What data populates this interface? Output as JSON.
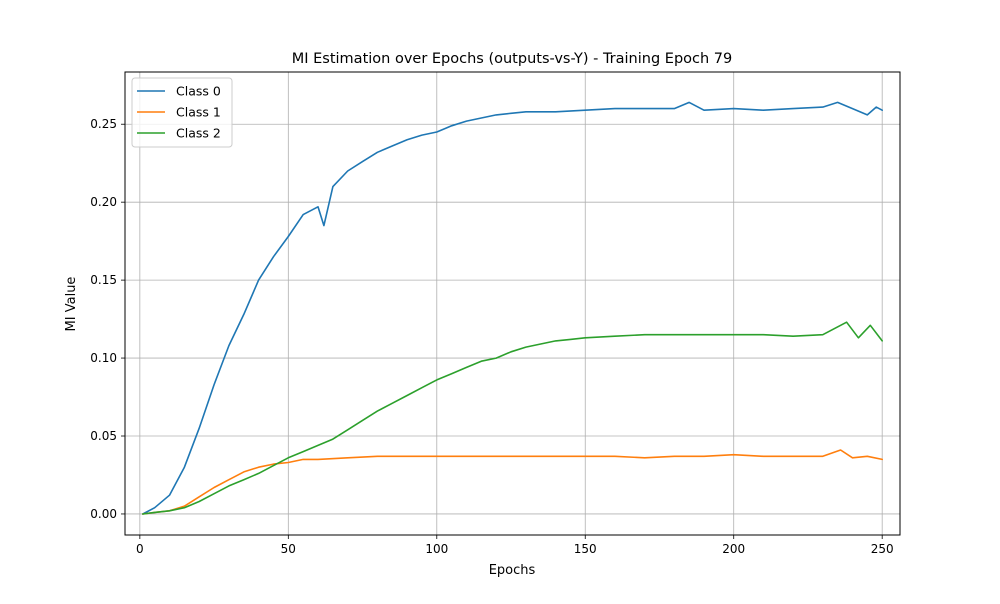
{
  "chart_data": {
    "type": "line",
    "title": "MI Estimation over Epochs (outputs-vs-Y) - Training Epoch 79",
    "xlabel": "Epochs",
    "ylabel": "MI Value",
    "xlim": [
      -5,
      256
    ],
    "ylim": [
      -0.0135,
      0.2835
    ],
    "xticks": [
      0,
      50,
      100,
      150,
      200,
      250
    ],
    "yticks": [
      0.0,
      0.05,
      0.1,
      0.15,
      0.2,
      0.25
    ],
    "xtick_labels": [
      "0",
      "50",
      "100",
      "150",
      "200",
      "250"
    ],
    "ytick_labels": [
      "0.00",
      "0.05",
      "0.10",
      "0.15",
      "0.20",
      "0.25"
    ],
    "grid": true,
    "legend_position": "top-left",
    "series": [
      {
        "name": "Class 0",
        "color": "#1f77b4",
        "points": [
          [
            1,
            0.0
          ],
          [
            5,
            0.004
          ],
          [
            10,
            0.012
          ],
          [
            15,
            0.03
          ],
          [
            20,
            0.055
          ],
          [
            25,
            0.083
          ],
          [
            30,
            0.108
          ],
          [
            35,
            0.128
          ],
          [
            40,
            0.15
          ],
          [
            45,
            0.165
          ],
          [
            50,
            0.178
          ],
          [
            55,
            0.192
          ],
          [
            60,
            0.197
          ],
          [
            62,
            0.185
          ],
          [
            65,
            0.21
          ],
          [
            70,
            0.22
          ],
          [
            75,
            0.226
          ],
          [
            80,
            0.232
          ],
          [
            85,
            0.236
          ],
          [
            90,
            0.24
          ],
          [
            95,
            0.243
          ],
          [
            100,
            0.245
          ],
          [
            105,
            0.249
          ],
          [
            110,
            0.252
          ],
          [
            115,
            0.254
          ],
          [
            120,
            0.256
          ],
          [
            125,
            0.257
          ],
          [
            130,
            0.258
          ],
          [
            140,
            0.258
          ],
          [
            150,
            0.259
          ],
          [
            160,
            0.26
          ],
          [
            170,
            0.26
          ],
          [
            180,
            0.26
          ],
          [
            185,
            0.264
          ],
          [
            190,
            0.259
          ],
          [
            200,
            0.26
          ],
          [
            210,
            0.259
          ],
          [
            220,
            0.26
          ],
          [
            230,
            0.261
          ],
          [
            235,
            0.264
          ],
          [
            240,
            0.26
          ],
          [
            245,
            0.256
          ],
          [
            248,
            0.261
          ],
          [
            250,
            0.259
          ]
        ]
      },
      {
        "name": "Class 1",
        "color": "#ff7f0e",
        "points": [
          [
            1,
            0.0
          ],
          [
            5,
            0.001
          ],
          [
            10,
            0.002
          ],
          [
            15,
            0.005
          ],
          [
            20,
            0.011
          ],
          [
            25,
            0.017
          ],
          [
            30,
            0.022
          ],
          [
            35,
            0.027
          ],
          [
            40,
            0.03
          ],
          [
            45,
            0.032
          ],
          [
            50,
            0.033
          ],
          [
            55,
            0.035
          ],
          [
            60,
            0.035
          ],
          [
            70,
            0.036
          ],
          [
            80,
            0.037
          ],
          [
            90,
            0.037
          ],
          [
            100,
            0.037
          ],
          [
            110,
            0.037
          ],
          [
            120,
            0.037
          ],
          [
            130,
            0.037
          ],
          [
            140,
            0.037
          ],
          [
            150,
            0.037
          ],
          [
            160,
            0.037
          ],
          [
            170,
            0.036
          ],
          [
            180,
            0.037
          ],
          [
            190,
            0.037
          ],
          [
            200,
            0.038
          ],
          [
            210,
            0.037
          ],
          [
            220,
            0.037
          ],
          [
            230,
            0.037
          ],
          [
            236,
            0.041
          ],
          [
            240,
            0.036
          ],
          [
            245,
            0.037
          ],
          [
            250,
            0.035
          ]
        ]
      },
      {
        "name": "Class 2",
        "color": "#2ca02c",
        "points": [
          [
            1,
            0.0
          ],
          [
            5,
            0.001
          ],
          [
            10,
            0.002
          ],
          [
            15,
            0.004
          ],
          [
            20,
            0.008
          ],
          [
            25,
            0.013
          ],
          [
            30,
            0.018
          ],
          [
            35,
            0.022
          ],
          [
            40,
            0.026
          ],
          [
            45,
            0.031
          ],
          [
            50,
            0.036
          ],
          [
            55,
            0.04
          ],
          [
            60,
            0.044
          ],
          [
            65,
            0.048
          ],
          [
            70,
            0.054
          ],
          [
            75,
            0.06
          ],
          [
            80,
            0.066
          ],
          [
            85,
            0.071
          ],
          [
            90,
            0.076
          ],
          [
            95,
            0.081
          ],
          [
            100,
            0.086
          ],
          [
            105,
            0.09
          ],
          [
            110,
            0.094
          ],
          [
            115,
            0.098
          ],
          [
            120,
            0.1
          ],
          [
            125,
            0.104
          ],
          [
            130,
            0.107
          ],
          [
            135,
            0.109
          ],
          [
            140,
            0.111
          ],
          [
            145,
            0.112
          ],
          [
            150,
            0.113
          ],
          [
            160,
            0.114
          ],
          [
            170,
            0.115
          ],
          [
            180,
            0.115
          ],
          [
            190,
            0.115
          ],
          [
            200,
            0.115
          ],
          [
            210,
            0.115
          ],
          [
            220,
            0.114
          ],
          [
            230,
            0.115
          ],
          [
            238,
            0.123
          ],
          [
            242,
            0.113
          ],
          [
            246,
            0.121
          ],
          [
            250,
            0.111
          ]
        ]
      }
    ]
  }
}
